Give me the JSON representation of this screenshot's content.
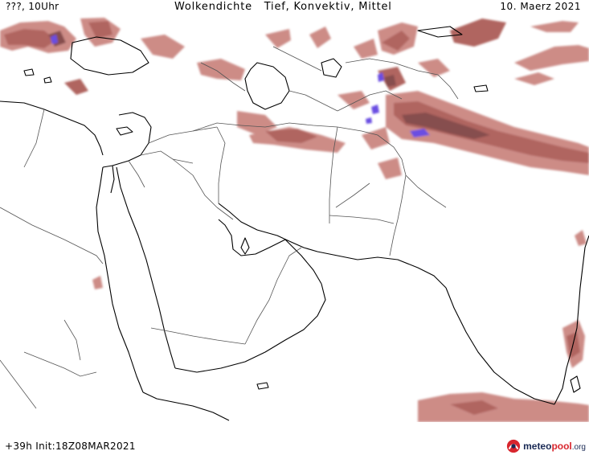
{
  "header": {
    "run_label": "???, 10Uhr",
    "title": "Wolkendichte   Tief, Konvektiv, Mittel",
    "date": "10. Maerz 2021"
  },
  "footer": {
    "run_info": "+39h Init:18Z08MAR2021",
    "brand_part1": "meteo",
    "brand_part2": "pool",
    "brand_part3": ".org"
  },
  "map": {
    "region": "Middle East / Arabian Peninsula / South Asia",
    "colors": {
      "cloud_low": "#c8807a",
      "cloud_mid": "#a85450",
      "cloud_high": "#7a3a3a",
      "convective": "#5a3adf",
      "coast": "#000000",
      "border": "#333333"
    }
  }
}
